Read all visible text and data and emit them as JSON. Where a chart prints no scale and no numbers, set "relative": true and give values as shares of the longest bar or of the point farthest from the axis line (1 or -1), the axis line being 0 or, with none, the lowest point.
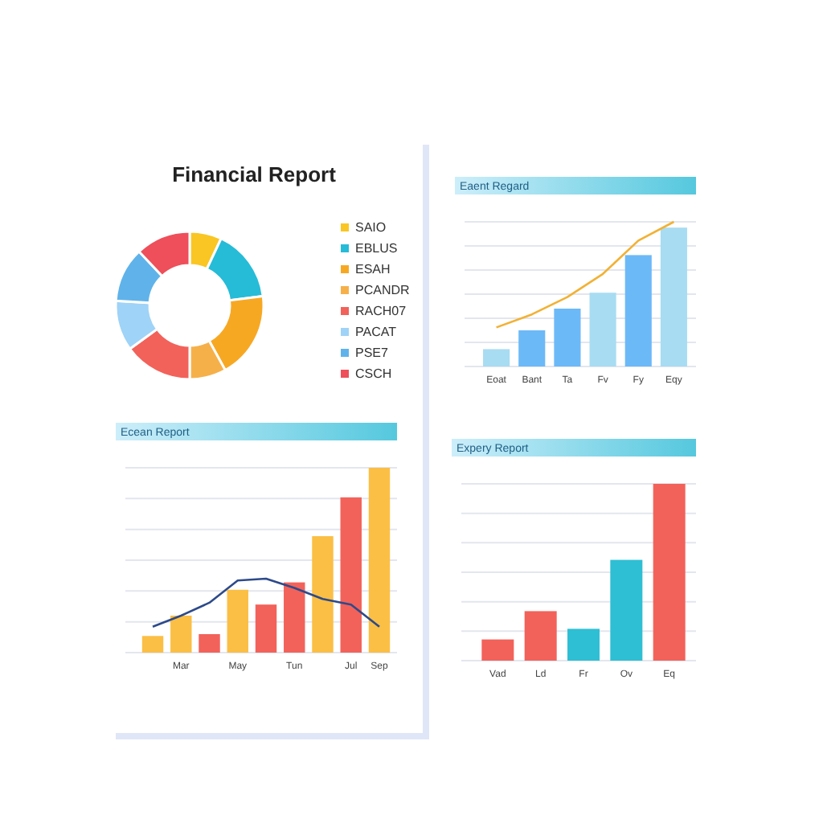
{
  "chart_data": [
    {
      "type": "donut",
      "title": "Financial Report",
      "categories": [
        "SAIO",
        "EBLUS",
        "ESAH",
        "PCANDR",
        "RACH07",
        "PACAT",
        "PSE7",
        "CSCH"
      ],
      "values": [
        7,
        16,
        19,
        8,
        15,
        11,
        12,
        12
      ],
      "colors": [
        "#f9c623",
        "#26bcd7",
        "#f7a823",
        "#f6b04a",
        "#f2625a",
        "#9fd3f7",
        "#5fb3ea",
        "#ee4f5a"
      ],
      "legend": "right"
    },
    {
      "type": "bar",
      "title": "Eaent Regard",
      "categories": [
        "Eoat",
        "Bant",
        "Ta",
        "Fv",
        "Fy",
        "Eqy"
      ],
      "relative": true,
      "grid": "y",
      "tick_labels": "x",
      "series": [
        {
          "type": "bar",
          "colors": [
            "#a8dcf2",
            "#6cb9f7",
            "#6cb9f7",
            "#a8dcf2",
            "#6cb9f7",
            "#a8dcf2"
          ],
          "values": [
            0.12,
            0.25,
            0.4,
            0.51,
            0.77,
            0.96
          ]
        },
        {
          "type": "line",
          "color": "#f2b134",
          "values": [
            0.27,
            0.36,
            0.48,
            0.64,
            0.87,
            1.0
          ]
        }
      ]
    },
    {
      "type": "bar",
      "title": "Ecean Report",
      "categories": [
        null,
        "Mar",
        null,
        "May",
        null,
        "Tun",
        null,
        "Jul",
        "Sep"
      ],
      "relative": true,
      "grid": "y",
      "tick_labels": "x",
      "series": [
        {
          "type": "bar",
          "colors": [
            "#fbbf45",
            "#fbbf45",
            "#f2625a",
            "#fbbf45",
            "#f2625a",
            "#f2625a",
            "#fbbf45",
            "#f2625a",
            "#fbbf45"
          ],
          "values": [
            0.09,
            0.2,
            0.1,
            0.34,
            0.26,
            0.38,
            0.63,
            0.84,
            1.0
          ]
        },
        {
          "type": "line",
          "color": "#2d4a8a",
          "values": [
            0.14,
            0.2,
            0.27,
            0.39,
            0.4,
            0.35,
            0.29,
            0.26,
            0.14
          ]
        }
      ]
    },
    {
      "type": "bar",
      "title": "Expery Report",
      "categories": [
        "Vad",
        "Ld",
        "Fr",
        "Ov",
        "Eq"
      ],
      "relative": true,
      "grid": "y",
      "tick_labels": "x",
      "series": [
        {
          "type": "bar",
          "colors": [
            "#f2625a",
            "#f2625a",
            "#2ebfd4",
            "#2ebfd4",
            "#f2625a"
          ],
          "values": [
            0.12,
            0.28,
            0.18,
            0.57,
            1.0
          ]
        }
      ]
    }
  ]
}
